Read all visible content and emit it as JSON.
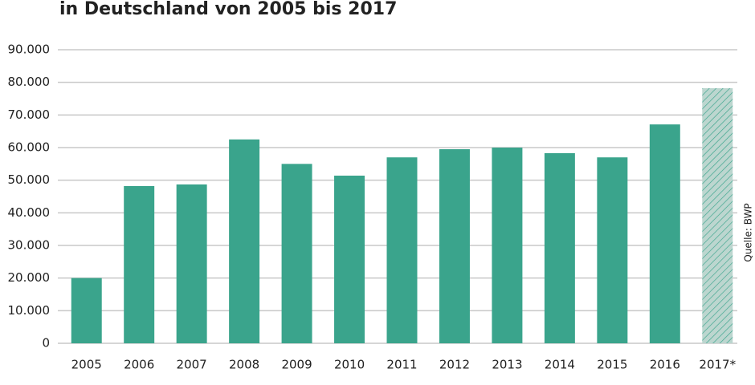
{
  "chart_data": {
    "type": "bar",
    "title": "in Deutschland von 2005 bis 2017",
    "source": "Quelle: BWP",
    "categories": [
      "2005",
      "2006",
      "2007",
      "2008",
      "2009",
      "2010",
      "2011",
      "2012",
      "2013",
      "2014",
      "2015",
      "2016",
      "2017*"
    ],
    "values": [
      20000,
      48200,
      48700,
      62500,
      55000,
      51400,
      57000,
      59500,
      60000,
      58300,
      57000,
      67100,
      78200
    ],
    "color": "#3aa48c",
    "hatch_color": "#bcd6cf",
    "bar_styles": [
      "solid",
      "solid",
      "solid",
      "solid",
      "solid",
      "solid",
      "solid",
      "solid",
      "solid",
      "solid",
      "solid",
      "solid",
      "hatched"
    ],
    "ylim": [
      0,
      90000
    ],
    "yticks": [
      0,
      {
        "value": 10000,
        "label": "10.000"
      },
      {
        "value": 20000,
        "label": "20.000"
      },
      {
        "value": 30000,
        "label": "30.000"
      },
      {
        "value": 40000,
        "label": "40.000"
      },
      {
        "value": 50000,
        "label": "50.000"
      },
      {
        "value": 60000,
        "label": "60.000"
      },
      {
        "value": 70000,
        "label": "70.000"
      },
      {
        "value": 80000,
        "label": "80.000"
      },
      {
        "value": 90000,
        "label": "90.000"
      }
    ],
    "grid": true
  }
}
